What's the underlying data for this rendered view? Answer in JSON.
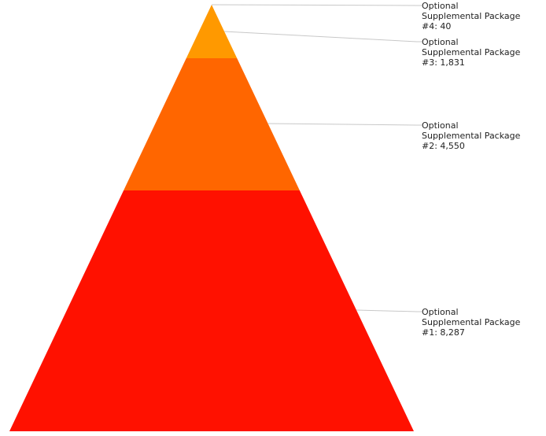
{
  "chart_data": {
    "type": "pyramid",
    "title": "",
    "segments": [
      {
        "label_lines": [
          "Optional",
          "Supplemental Package",
          "#1: 8,287"
        ],
        "name": "Optional Supplemental Package #1",
        "value": 8287,
        "color": "#ff1100"
      },
      {
        "label_lines": [
          "Optional",
          "Supplemental Package",
          "#2: 4,550"
        ],
        "name": "Optional Supplemental Package #2",
        "value": 4550,
        "color": "#ff6600"
      },
      {
        "label_lines": [
          "Optional",
          "Supplemental Package",
          "#3: 1,831"
        ],
        "name": "Optional Supplemental Package #3",
        "value": 1831,
        "color": "#ff9900"
      },
      {
        "label_lines": [
          "Optional",
          "Supplemental Package",
          "#4: 40"
        ],
        "name": "Optional Supplemental Package #4",
        "value": 40,
        "color": "#ff9900"
      }
    ]
  }
}
